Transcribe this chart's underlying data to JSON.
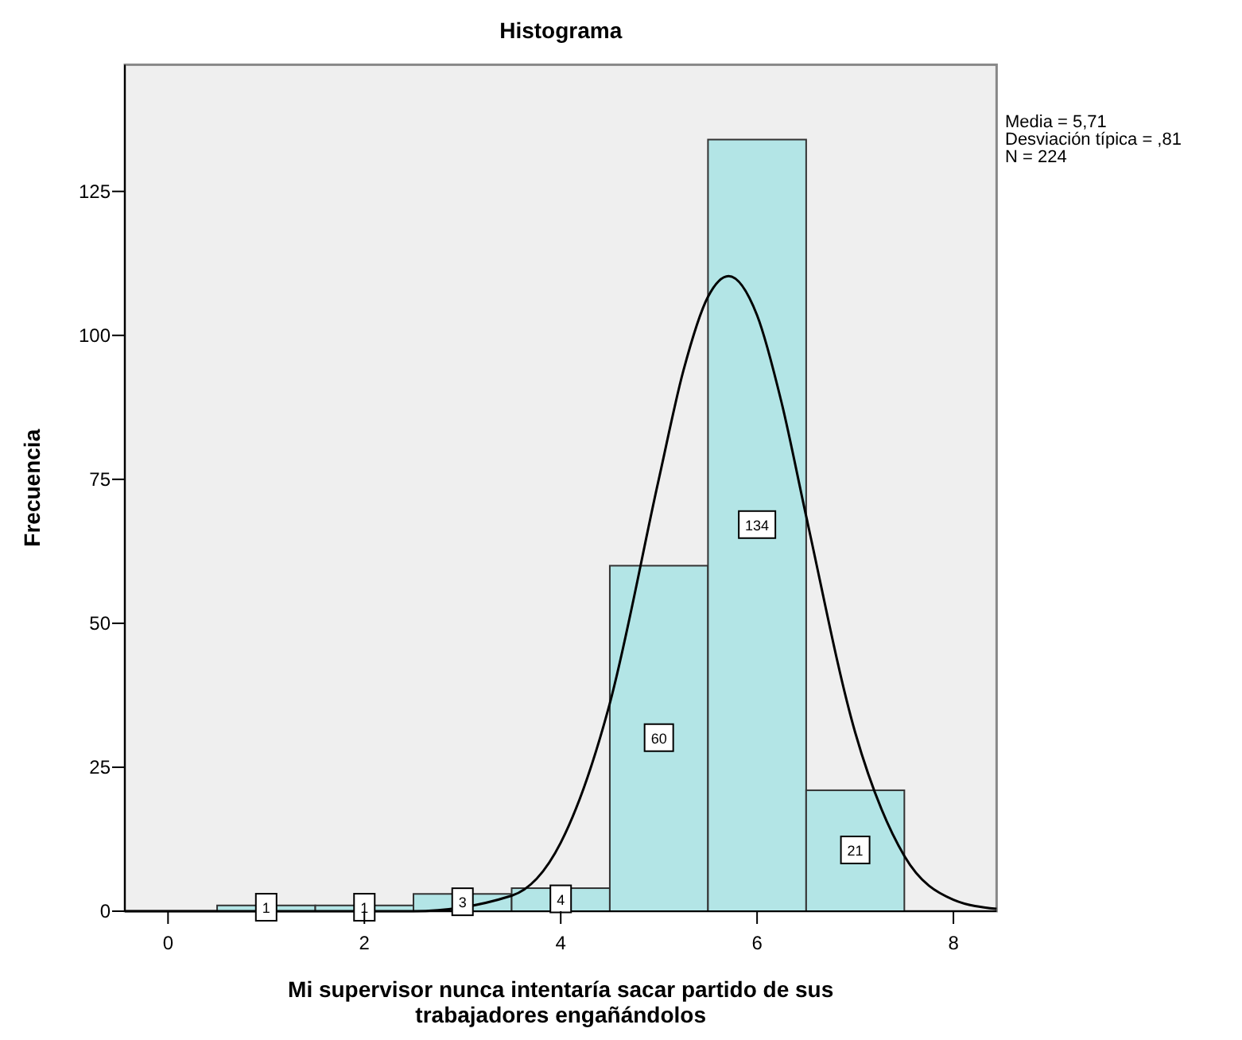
{
  "chart_data": {
    "type": "histogram",
    "title": "Histograma",
    "xlabel": "Mi supervisor nunca intentaría sacar partido de sus\ntrabajadores engañándolos",
    "ylabel": "Frecuencia",
    "bins": [
      0.5,
      1.5,
      2.5,
      3.5,
      4.5,
      5.5,
      6.5,
      7.5
    ],
    "values": [
      1,
      1,
      3,
      4,
      60,
      134,
      21
    ],
    "color": "#b3e5e6",
    "value_labels": [
      "1",
      "1",
      "3",
      "4",
      "60",
      "134",
      "21"
    ],
    "series": [
      {
        "type": "line",
        "color": "#000000",
        "x": [
          -0.44,
          2,
          2.5,
          3.5,
          4,
          4.5,
          5,
          5.25,
          5.5,
          5.71,
          6,
          6.25,
          6.5,
          7,
          7.5,
          8,
          8.44
        ],
        "values": [
          0,
          0,
          0,
          2.7,
          11.9,
          36.1,
          75.1,
          93.9,
          106.7,
          110.3,
          103.5,
          88.3,
          68.6,
          31.0,
          9.6,
          2.0,
          0.4
        ]
      }
    ],
    "xlim": [
      -0.44,
      8.44
    ],
    "xticks": [
      0,
      2,
      4,
      6,
      8
    ],
    "ylim": [
      0,
      147
    ],
    "yticks": [
      0,
      25,
      50,
      75,
      100,
      125
    ],
    "grid": false,
    "annotations": [
      "Media = 5,71",
      "Desviación típica = ,81",
      "N = 224"
    ]
  }
}
